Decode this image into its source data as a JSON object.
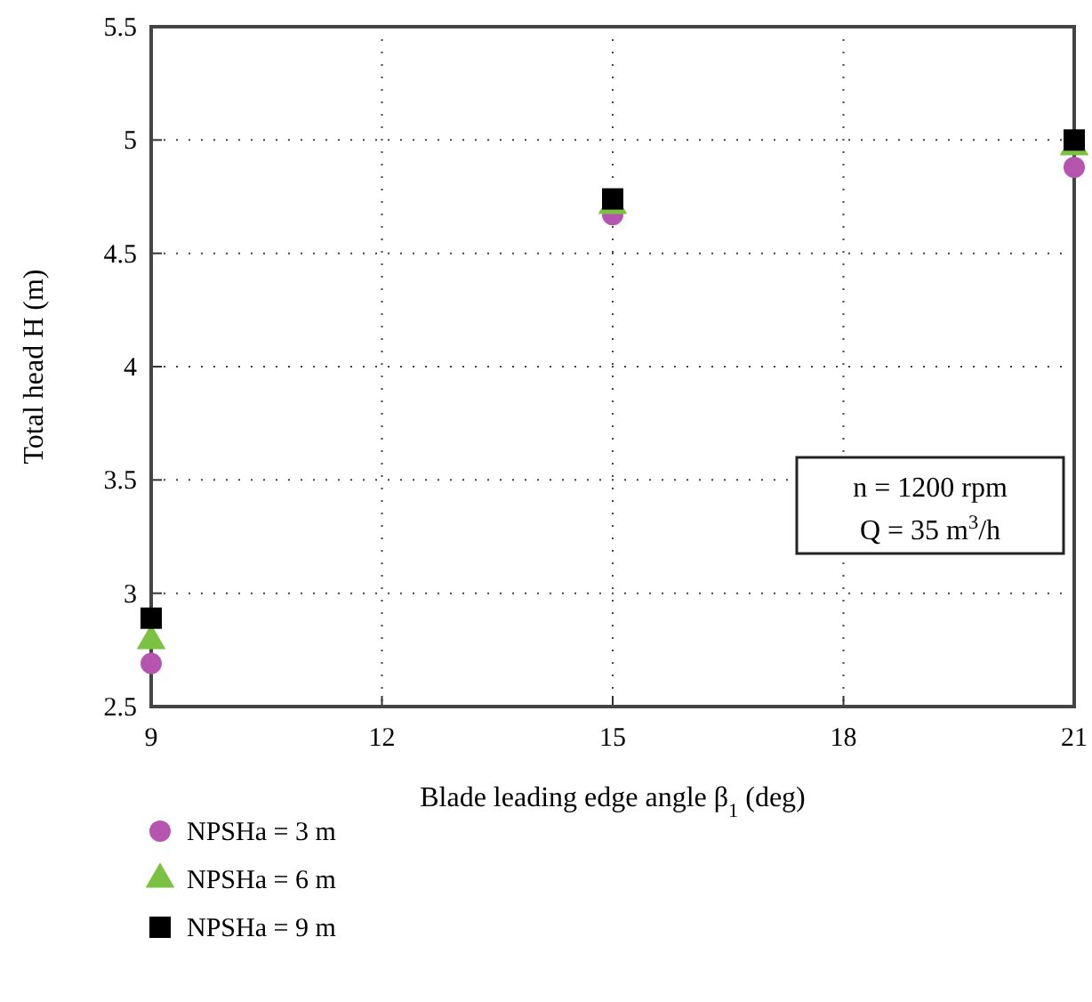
{
  "chart_data": {
    "type": "scatter",
    "xlabel": "Blade leading edge angle β$_{1}$ (deg)",
    "ylabel": "Total head H (m)",
    "x": [
      9,
      15,
      21
    ],
    "xlim": [
      9,
      21
    ],
    "xticks": [
      9,
      12,
      15,
      18,
      21
    ],
    "ylim": [
      2.5,
      5.5
    ],
    "yticks": [
      2.5,
      3,
      3.5,
      4,
      4.5,
      5,
      5.5
    ],
    "grid": true,
    "legend": "bottom",
    "series": [
      {
        "name": "NPSHa = 3 m",
        "color": "#b555b0",
        "marker": "circle",
        "values": [
          2.69,
          4.67,
          4.88
        ]
      },
      {
        "name": "NPSHa = 6 m",
        "color": "#7cc242",
        "marker": "triangle",
        "values": [
          2.79,
          4.71,
          4.97
        ]
      },
      {
        "name": "NPSHa = 9 m",
        "color": "#000000",
        "marker": "square",
        "values": [
          2.89,
          4.74,
          5.0
        ]
      }
    ],
    "annotations": [
      "n = 1200 rpm",
      "Q = 35 m$^{3}$/h"
    ]
  }
}
